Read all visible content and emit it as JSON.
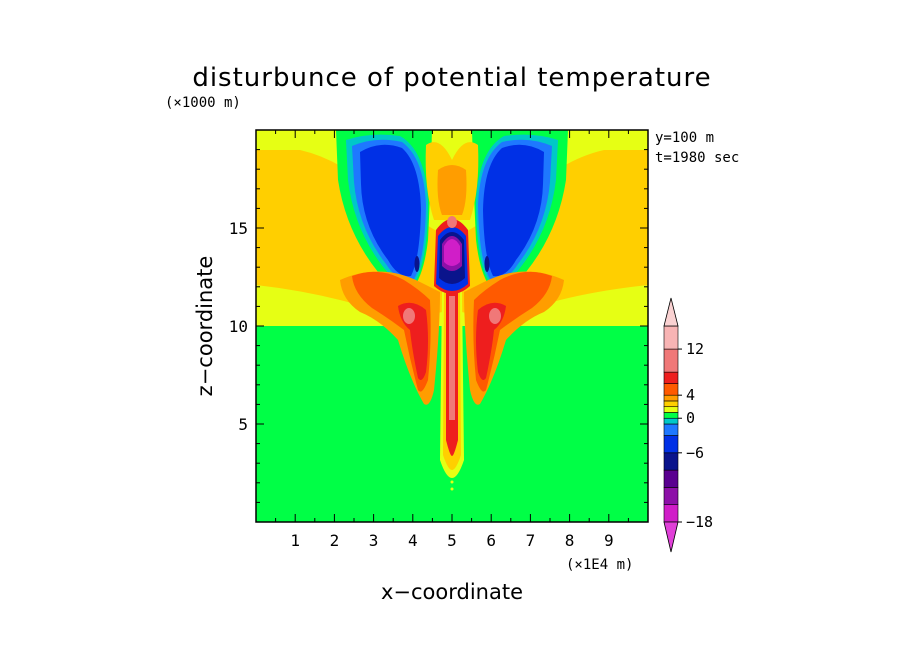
{
  "chart_data": {
    "type": "heatmap",
    "title": "disturbunce of potential temperature",
    "xlabel": "x−coordinate",
    "ylabel": "z−coordinate",
    "x_unit": "(×1E4 m)",
    "y_unit": "(×1000 m)",
    "annotations": [
      "y=100 m",
      "t=1980 sec"
    ],
    "xlim": [
      0,
      10
    ],
    "ylim": [
      0,
      20
    ],
    "x_ticks": [
      1,
      2,
      3,
      4,
      5,
      6,
      7,
      8,
      9
    ],
    "y_ticks": [
      5,
      10,
      15
    ],
    "colorbar": {
      "tick_labels": [
        {
          "label": "12",
          "value": 12
        },
        {
          "label": "4",
          "value": 4
        },
        {
          "label": "0",
          "value": 0
        },
        {
          "label": "−6",
          "value": -6
        },
        {
          "label": "−18",
          "value": -18
        }
      ],
      "levels": [
        {
          "lo": -18,
          "hi": -15,
          "color": "#d01ec8"
        },
        {
          "lo": -15,
          "hi": -12,
          "color": "#8d10a8"
        },
        {
          "lo": -12,
          "hi": -9,
          "color": "#5a0090"
        },
        {
          "lo": -9,
          "hi": -6,
          "color": "#0a148c"
        },
        {
          "lo": -6,
          "hi": -3,
          "color": "#0030e6"
        },
        {
          "lo": -3,
          "hi": -1,
          "color": "#1e78ff"
        },
        {
          "lo": -1,
          "hi": 0,
          "color": "#00c8c8"
        },
        {
          "lo": 0,
          "hi": 1,
          "color": "#00ff46"
        },
        {
          "lo": 1,
          "hi": 2,
          "color": "#e6ff14"
        },
        {
          "lo": 2,
          "hi": 3,
          "color": "#ffcf00"
        },
        {
          "lo": 3,
          "hi": 4,
          "color": "#ff9d00"
        },
        {
          "lo": 4,
          "hi": 6,
          "color": "#ff5a00"
        },
        {
          "lo": 6,
          "hi": 8,
          "color": "#ee1e1e"
        },
        {
          "lo": 8,
          "hi": 12,
          "color": "#f07878"
        },
        {
          "lo": 12,
          "hi": 16,
          "color": "#f8b4b4"
        }
      ],
      "over_color": "#fad2d2",
      "under_color": "#e040d8"
    },
    "background_value_lower": 0.5,
    "background_value_upper": 2.5
  }
}
